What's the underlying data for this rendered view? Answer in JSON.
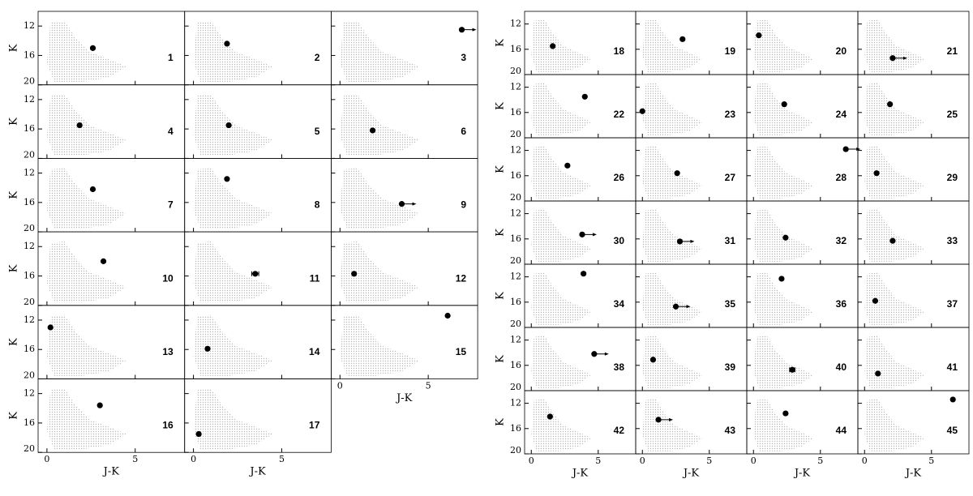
{
  "chart_data": {
    "type": "scatter",
    "xlabel": "J-K",
    "ylabel": "K",
    "xlim": [
      -0.5,
      7.8
    ],
    "ylim": [
      20,
      10
    ],
    "xticks": [
      0,
      5
    ],
    "yticks": [
      12,
      16,
      20
    ],
    "color": "#000000",
    "panels": [
      {
        "label": "1",
        "x": 2.6,
        "y": 15.0
      },
      {
        "label": "2",
        "x": 1.9,
        "y": 14.4
      },
      {
        "label": "3",
        "x": 6.9,
        "y": 12.5,
        "limit": true
      },
      {
        "label": "4",
        "x": 1.85,
        "y": 15.5
      },
      {
        "label": "5",
        "x": 2.0,
        "y": 15.5
      },
      {
        "label": "6",
        "x": 1.85,
        "y": 16.2
      },
      {
        "label": "7",
        "x": 2.6,
        "y": 14.2
      },
      {
        "label": "8",
        "x": 1.9,
        "y": 12.8
      },
      {
        "label": "9",
        "x": 3.5,
        "y": 16.2,
        "limit": true
      },
      {
        "label": "10",
        "x": 3.2,
        "y": 14.0
      },
      {
        "label": "11",
        "x": 3.5,
        "y": 15.7,
        "xerr": 0.2
      },
      {
        "label": "12",
        "x": 0.8,
        "y": 15.7
      },
      {
        "label": "13",
        "x": 0.2,
        "y": 13.0
      },
      {
        "label": "14",
        "x": 0.8,
        "y": 15.9
      },
      {
        "label": "15",
        "x": 6.1,
        "y": 11.4
      },
      {
        "label": "16",
        "x": 3.0,
        "y": 13.6
      },
      {
        "label": "17",
        "x": 0.3,
        "y": 17.5
      },
      {
        "label": "18",
        "x": 1.6,
        "y": 15.5
      },
      {
        "label": "19",
        "x": 3.0,
        "y": 14.4
      },
      {
        "label": "20",
        "x": 0.4,
        "y": 13.8
      },
      {
        "label": "21",
        "x": 2.1,
        "y": 17.4,
        "limit": true
      },
      {
        "label": "22",
        "x": 4.0,
        "y": 13.5
      },
      {
        "label": "23",
        "x": 0.0,
        "y": 15.8
      },
      {
        "label": "24",
        "x": 2.3,
        "y": 14.7
      },
      {
        "label": "25",
        "x": 1.9,
        "y": 14.7
      },
      {
        "label": "26",
        "x": 2.7,
        "y": 14.4
      },
      {
        "label": "27",
        "x": 2.6,
        "y": 15.6
      },
      {
        "label": "28",
        "x": 6.9,
        "y": 11.8,
        "limit": true
      },
      {
        "label": "29",
        "x": 0.9,
        "y": 15.6
      },
      {
        "label": "30",
        "x": 3.8,
        "y": 15.3,
        "limit": true
      },
      {
        "label": "31",
        "x": 2.8,
        "y": 16.4,
        "limit": true
      },
      {
        "label": "32",
        "x": 2.4,
        "y": 15.8
      },
      {
        "label": "33",
        "x": 2.1,
        "y": 16.3
      },
      {
        "label": "34",
        "x": 3.9,
        "y": 11.5
      },
      {
        "label": "35",
        "x": 2.5,
        "y": 16.7,
        "limit": true
      },
      {
        "label": "36",
        "x": 2.1,
        "y": 12.3
      },
      {
        "label": "37",
        "x": 0.8,
        "y": 15.8
      },
      {
        "label": "38",
        "x": 4.7,
        "y": 14.2,
        "limit": true
      },
      {
        "label": "39",
        "x": 0.8,
        "y": 15.1
      },
      {
        "label": "40",
        "x": 2.9,
        "y": 16.7,
        "xerr": 0.2
      },
      {
        "label": "41",
        "x": 1.0,
        "y": 17.3
      },
      {
        "label": "42",
        "x": 1.4,
        "y": 14.1
      },
      {
        "label": "43",
        "x": 1.2,
        "y": 14.6,
        "limit": true
      },
      {
        "label": "44",
        "x": 2.4,
        "y": 13.6
      },
      {
        "label": "45",
        "x": 6.6,
        "y": 11.4
      }
    ]
  }
}
